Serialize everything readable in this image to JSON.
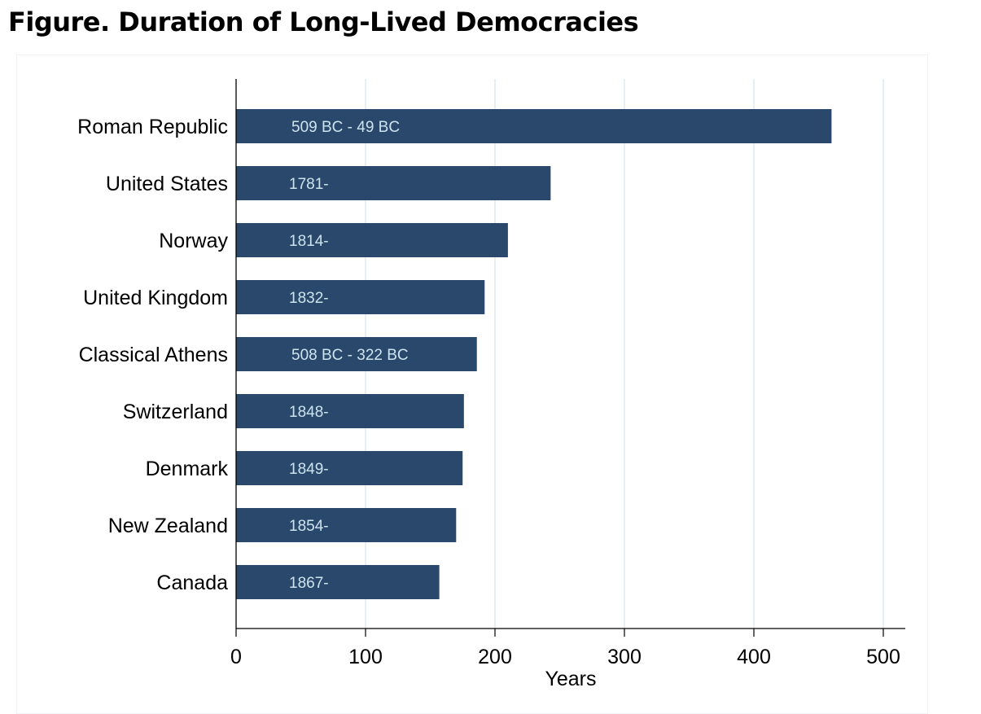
{
  "chart_data": {
    "type": "bar",
    "orientation": "horizontal",
    "title": "Figure. Duration of Long-Lived Democracies",
    "xlabel": "Years",
    "ylabel": "",
    "xlim": [
      0,
      517
    ],
    "xticks": [
      0,
      100,
      200,
      300,
      400,
      500
    ],
    "grid": true,
    "categories": [
      "Roman Republic",
      "United States",
      "Norway",
      "United Kingdom",
      "Classical Athens",
      "Switzerland",
      "Denmark",
      "New Zealand",
      "Canada"
    ],
    "values": [
      460,
      243,
      210,
      192,
      186,
      176,
      175,
      170,
      157
    ],
    "bar_labels": [
      "509 BC - 49 BC",
      "1781-",
      "1814-",
      "1832-",
      "508 BC - 322 BC",
      "1848-",
      "1849-",
      "1854-",
      "1867-"
    ],
    "colors": {
      "bar": "#29486b",
      "bar_label": "#cde3ef",
      "grid": "#e8eff2"
    }
  }
}
